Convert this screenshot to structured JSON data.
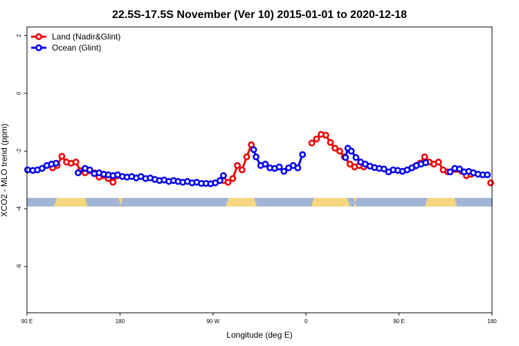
{
  "chart_data": {
    "type": "line",
    "title": "22.5S-17.5S November (Ver 10)   2015-01-01 to 2020-12-18",
    "xlabel": "Longitude (deg E)",
    "ylabel": "XCO2 - MLO trend (ppm)",
    "xlim": [
      90,
      450
    ],
    "ylim": [
      -7.6,
      2.3
    ],
    "x_ticks": [
      {
        "value": 90,
        "label": "90 E"
      },
      {
        "value": 162,
        "label": "180"
      },
      {
        "value": 234,
        "label": "90 W"
      },
      {
        "value": 306,
        "label": "0"
      },
      {
        "value": 378,
        "label": "90 E"
      },
      {
        "value": 450,
        "label": "180"
      }
    ],
    "y_ticks": [
      {
        "value": 2,
        "label": "2"
      },
      {
        "value": 0,
        "label": "0"
      },
      {
        "value": -2,
        "label": "-2"
      },
      {
        "value": -4,
        "label": "-4"
      },
      {
        "value": -6,
        "label": "-6"
      }
    ],
    "legend": {
      "position": "top-left"
    },
    "series": [
      {
        "name": "Land (Nadir&Glint)",
        "color": "#ee0000",
        "points": [
          [
            109.8,
            -2.58
          ],
          [
            113.4,
            -2.5
          ],
          [
            117,
            -2.18
          ],
          [
            120.6,
            -2.38
          ],
          [
            124.2,
            -2.42
          ],
          [
            127.8,
            -2.38
          ],
          [
            131.4,
            -2.68
          ],
          [
            135,
            -2.75
          ],
          [
            138.6,
            -2.68
          ],
          [
            142.2,
            -2.75
          ],
          [
            145.8,
            -2.9
          ],
          [
            149.4,
            -2.85
          ],
          [
            153,
            -2.95
          ],
          [
            156.6,
            -3.08
          ],
          [
            160.2,
            -2.85
          ],
          [
            242.1,
            -3.02
          ],
          [
            245.7,
            -3.08
          ],
          [
            249.3,
            -2.95
          ],
          [
            252.9,
            -2.5
          ],
          [
            256.5,
            -2.65
          ],
          [
            260.1,
            -2.2
          ],
          [
            263.7,
            -1.78
          ],
          [
            310.5,
            -1.72
          ],
          [
            314.1,
            -1.58
          ],
          [
            317.7,
            -1.42
          ],
          [
            321.3,
            -1.45
          ],
          [
            324.9,
            -1.7
          ],
          [
            328.5,
            -1.9
          ],
          [
            332.1,
            -2.0
          ],
          [
            335.7,
            -2.2
          ],
          [
            340,
            -2.45
          ],
          [
            343.6,
            -2.55
          ],
          [
            347.2,
            -2.5
          ],
          [
            350.8,
            -2.55
          ],
          [
            390.6,
            -2.52
          ],
          [
            394.2,
            -2.42
          ],
          [
            397.8,
            -2.2
          ],
          [
            401.4,
            -2.38
          ],
          [
            405,
            -2.45
          ],
          [
            408.6,
            -2.38
          ],
          [
            412.2,
            -2.65
          ],
          [
            415.8,
            -2.72
          ],
          [
            426.6,
            -2.7
          ],
          [
            430.2,
            -2.85
          ],
          [
            433.8,
            -2.8
          ],
          [
            449,
            -3.1
          ]
        ]
      },
      {
        "name": "Ocean (Glint)",
        "color": "#0000ee",
        "points": [
          [
            90.5,
            -2.65
          ],
          [
            94.5,
            -2.67
          ],
          [
            98.1,
            -2.65
          ],
          [
            101.7,
            -2.6
          ],
          [
            105.3,
            -2.5
          ],
          [
            108.9,
            -2.45
          ],
          [
            112.5,
            -2.42
          ],
          [
            129.6,
            -2.75
          ],
          [
            135,
            -2.6
          ],
          [
            138.6,
            -2.65
          ],
          [
            142.2,
            -2.78
          ],
          [
            145.8,
            -2.75
          ],
          [
            149.4,
            -2.8
          ],
          [
            153,
            -2.82
          ],
          [
            156.6,
            -2.85
          ],
          [
            160.2,
            -2.82
          ],
          [
            163.8,
            -2.88
          ],
          [
            167.4,
            -2.9
          ],
          [
            171,
            -2.88
          ],
          [
            174.6,
            -2.93
          ],
          [
            178.2,
            -2.88
          ],
          [
            181.8,
            -2.95
          ],
          [
            185.4,
            -2.93
          ],
          [
            189,
            -2.98
          ],
          [
            192.6,
            -3.02
          ],
          [
            196.2,
            -3.0
          ],
          [
            199.8,
            -3.05
          ],
          [
            203.4,
            -3.02
          ],
          [
            207,
            -3.05
          ],
          [
            210.6,
            -3.08
          ],
          [
            214.2,
            -3.05
          ],
          [
            217.8,
            -3.1
          ],
          [
            221.4,
            -3.08
          ],
          [
            225,
            -3.12
          ],
          [
            228.6,
            -3.12
          ],
          [
            232.2,
            -3.13
          ],
          [
            235.8,
            -3.1
          ],
          [
            239.4,
            -3.02
          ],
          [
            242.1,
            -2.85
          ],
          [
            265.5,
            -1.95
          ],
          [
            267.3,
            -2.2
          ],
          [
            270.9,
            -2.5
          ],
          [
            274.5,
            -2.45
          ],
          [
            278.1,
            -2.58
          ],
          [
            281.7,
            -2.6
          ],
          [
            285.3,
            -2.55
          ],
          [
            288.9,
            -2.7
          ],
          [
            292.5,
            -2.58
          ],
          [
            296.1,
            -2.5
          ],
          [
            299.7,
            -2.58
          ],
          [
            303.3,
            -2.12
          ],
          [
            336.6,
            -2.22
          ],
          [
            338.4,
            -1.9
          ],
          [
            341.1,
            -2.0
          ],
          [
            344.7,
            -2.22
          ],
          [
            348.3,
            -2.38
          ],
          [
            351.9,
            -2.45
          ],
          [
            355.5,
            -2.52
          ],
          [
            359.1,
            -2.57
          ],
          [
            362.7,
            -2.6
          ],
          [
            366.3,
            -2.62
          ],
          [
            369.9,
            -2.72
          ],
          [
            373.5,
            -2.65
          ],
          [
            377.1,
            -2.67
          ],
          [
            380.7,
            -2.7
          ],
          [
            384.3,
            -2.65
          ],
          [
            387.9,
            -2.58
          ],
          [
            391.5,
            -2.5
          ],
          [
            395.1,
            -2.45
          ],
          [
            398.7,
            -2.4
          ],
          [
            417.6,
            -2.72
          ],
          [
            421.2,
            -2.6
          ],
          [
            424.8,
            -2.62
          ],
          [
            428.4,
            -2.72
          ],
          [
            432,
            -2.7
          ],
          [
            435.6,
            -2.75
          ],
          [
            439.2,
            -2.8
          ],
          [
            442.8,
            -2.82
          ],
          [
            446.4,
            -2.82
          ]
        ]
      }
    ],
    "surface_band": {
      "y_range": [
        -3.62,
        -3.92
      ],
      "ocean_color": "#a2b5d6",
      "land_color": "#f7d680",
      "land_segments": [
        [
          111,
          137
        ],
        [
          162,
          163
        ],
        [
          244,
          268
        ],
        [
          310,
          340
        ],
        [
          343,
          345
        ],
        [
          398,
          423
        ]
      ]
    }
  }
}
